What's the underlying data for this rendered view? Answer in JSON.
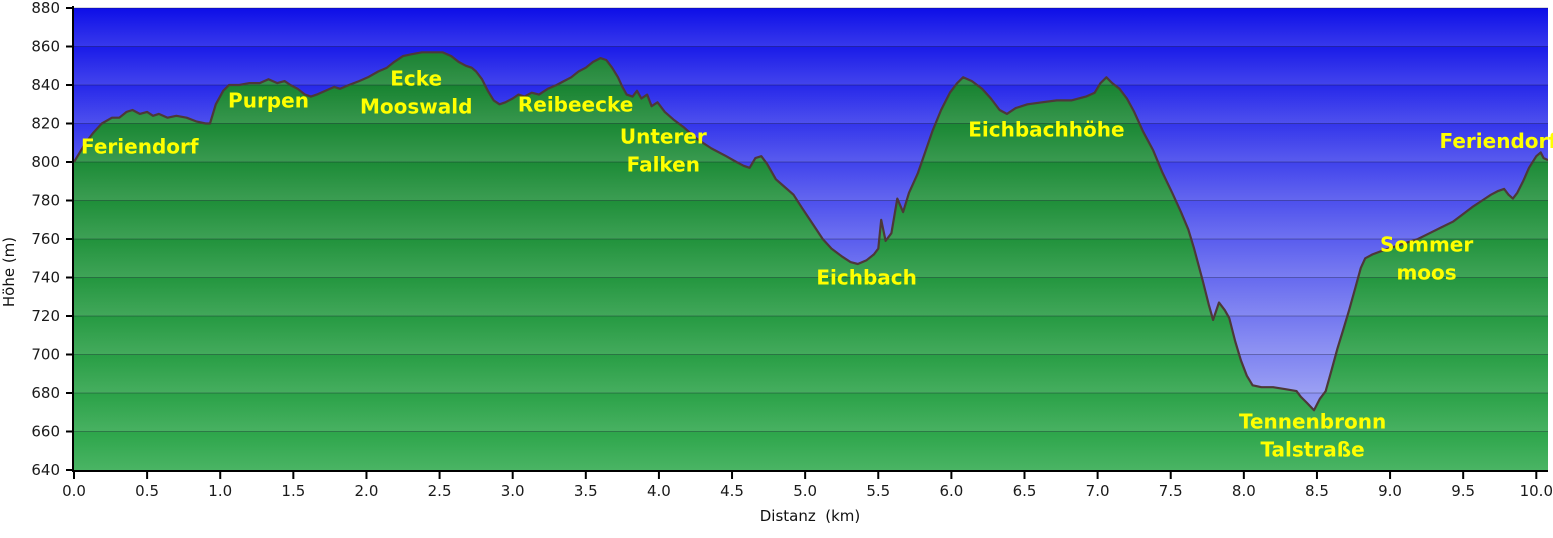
{
  "chart_data": {
    "type": "area",
    "title": "",
    "xlabel": "Distanz  (km)",
    "ylabel": "Höhe (m)",
    "x_unit": "km",
    "y_unit": "m",
    "xlim": [
      0,
      10.08
    ],
    "ylim": [
      640,
      880
    ],
    "grid": true,
    "x_ticks": [
      "0.0",
      "0.5",
      "1.0",
      "1.5",
      "2.0",
      "2.5",
      "3.0",
      "3.5",
      "4.0",
      "4.5",
      "5.0",
      "5.5",
      "6.0",
      "6.5",
      "7.0",
      "7.5",
      "8.0",
      "8.5",
      "9.0",
      "9.5",
      "10.0"
    ],
    "y_ticks": [
      640,
      660,
      680,
      700,
      720,
      740,
      760,
      780,
      800,
      820,
      840,
      860,
      880
    ],
    "colors": {
      "sky_top": "#0d0ee8",
      "sky_bottom": "#a6acf4",
      "terrain_top": "#137c2b",
      "terrain_bottom": "#2fa94d",
      "band_light": "#ffffff",
      "outline": "#4d3838",
      "gridline": "rgba(15,15,40,0.32)",
      "axis": "#000000",
      "tick_text": "#1a1a1a",
      "waypoint_label": "#ffff00"
    },
    "profile": [
      [
        0.0,
        800
      ],
      [
        0.04,
        805
      ],
      [
        0.08,
        810
      ],
      [
        0.13,
        815
      ],
      [
        0.19,
        820
      ],
      [
        0.26,
        823
      ],
      [
        0.31,
        823
      ],
      [
        0.36,
        826
      ],
      [
        0.4,
        827
      ],
      [
        0.45,
        825
      ],
      [
        0.5,
        826
      ],
      [
        0.54,
        824
      ],
      [
        0.58,
        825
      ],
      [
        0.64,
        823
      ],
      [
        0.7,
        824
      ],
      [
        0.77,
        823
      ],
      [
        0.84,
        821
      ],
      [
        0.9,
        820
      ],
      [
        0.93,
        820
      ],
      [
        0.97,
        830
      ],
      [
        1.02,
        837
      ],
      [
        1.06,
        840
      ],
      [
        1.13,
        840
      ],
      [
        1.2,
        841
      ],
      [
        1.27,
        841
      ],
      [
        1.33,
        843
      ],
      [
        1.39,
        841
      ],
      [
        1.44,
        842
      ],
      [
        1.48,
        840
      ],
      [
        1.53,
        838
      ],
      [
        1.58,
        835
      ],
      [
        1.62,
        834
      ],
      [
        1.66,
        835
      ],
      [
        1.72,
        837
      ],
      [
        1.78,
        839
      ],
      [
        1.82,
        838
      ],
      [
        1.88,
        840
      ],
      [
        1.95,
        842
      ],
      [
        2.01,
        844
      ],
      [
        2.08,
        847
      ],
      [
        2.14,
        849
      ],
      [
        2.19,
        852
      ],
      [
        2.25,
        855
      ],
      [
        2.31,
        856
      ],
      [
        2.38,
        857
      ],
      [
        2.45,
        857
      ],
      [
        2.52,
        857
      ],
      [
        2.58,
        855
      ],
      [
        2.63,
        852
      ],
      [
        2.68,
        850
      ],
      [
        2.72,
        849
      ],
      [
        2.75,
        847
      ],
      [
        2.79,
        843
      ],
      [
        2.83,
        837
      ],
      [
        2.87,
        832
      ],
      [
        2.91,
        830
      ],
      [
        2.95,
        831
      ],
      [
        3.0,
        833
      ],
      [
        3.04,
        835
      ],
      [
        3.08,
        834
      ],
      [
        3.13,
        836
      ],
      [
        3.18,
        835
      ],
      [
        3.24,
        838
      ],
      [
        3.3,
        840
      ],
      [
        3.35,
        842
      ],
      [
        3.4,
        844
      ],
      [
        3.45,
        847
      ],
      [
        3.5,
        849
      ],
      [
        3.55,
        852
      ],
      [
        3.6,
        854
      ],
      [
        3.64,
        853
      ],
      [
        3.68,
        849
      ],
      [
        3.72,
        844
      ],
      [
        3.75,
        839
      ],
      [
        3.78,
        835
      ],
      [
        3.82,
        834
      ],
      [
        3.85,
        837
      ],
      [
        3.88,
        833
      ],
      [
        3.92,
        835
      ],
      [
        3.95,
        829
      ],
      [
        3.99,
        831
      ],
      [
        4.04,
        826
      ],
      [
        4.1,
        822
      ],
      [
        4.17,
        818
      ],
      [
        4.26,
        812
      ],
      [
        4.36,
        807
      ],
      [
        4.46,
        803
      ],
      [
        4.53,
        800
      ],
      [
        4.58,
        798
      ],
      [
        4.62,
        797
      ],
      [
        4.66,
        802
      ],
      [
        4.7,
        803
      ],
      [
        4.74,
        799
      ],
      [
        4.8,
        791
      ],
      [
        4.86,
        787
      ],
      [
        4.92,
        783
      ],
      [
        4.98,
        776
      ],
      [
        5.05,
        768
      ],
      [
        5.12,
        760
      ],
      [
        5.18,
        755
      ],
      [
        5.25,
        751
      ],
      [
        5.31,
        748
      ],
      [
        5.36,
        747
      ],
      [
        5.42,
        749
      ],
      [
        5.47,
        752
      ],
      [
        5.5,
        755
      ],
      [
        5.52,
        770
      ],
      [
        5.55,
        759
      ],
      [
        5.59,
        763
      ],
      [
        5.63,
        781
      ],
      [
        5.67,
        774
      ],
      [
        5.71,
        784
      ],
      [
        5.77,
        794
      ],
      [
        5.82,
        805
      ],
      [
        5.87,
        816
      ],
      [
        5.93,
        827
      ],
      [
        5.99,
        836
      ],
      [
        6.04,
        841
      ],
      [
        6.08,
        844
      ],
      [
        6.14,
        842
      ],
      [
        6.21,
        838
      ],
      [
        6.27,
        833
      ],
      [
        6.33,
        827
      ],
      [
        6.38,
        825
      ],
      [
        6.44,
        828
      ],
      [
        6.52,
        830
      ],
      [
        6.62,
        831
      ],
      [
        6.72,
        832
      ],
      [
        6.82,
        832
      ],
      [
        6.92,
        834
      ],
      [
        6.98,
        836
      ],
      [
        7.02,
        841
      ],
      [
        7.06,
        844
      ],
      [
        7.1,
        841
      ],
      [
        7.15,
        838
      ],
      [
        7.2,
        833
      ],
      [
        7.25,
        826
      ],
      [
        7.31,
        816
      ],
      [
        7.38,
        806
      ],
      [
        7.44,
        795
      ],
      [
        7.51,
        784
      ],
      [
        7.57,
        774
      ],
      [
        7.62,
        765
      ],
      [
        7.66,
        755
      ],
      [
        7.72,
        738
      ],
      [
        7.76,
        726
      ],
      [
        7.79,
        718
      ],
      [
        7.83,
        727
      ],
      [
        7.87,
        723
      ],
      [
        7.9,
        719
      ],
      [
        7.94,
        707
      ],
      [
        7.98,
        697
      ],
      [
        8.02,
        689
      ],
      [
        8.06,
        684
      ],
      [
        8.12,
        683
      ],
      [
        8.2,
        683
      ],
      [
        8.28,
        682
      ],
      [
        8.36,
        681
      ],
      [
        8.39,
        678
      ],
      [
        8.43,
        675
      ],
      [
        8.48,
        671
      ],
      [
        8.52,
        677
      ],
      [
        8.56,
        681
      ],
      [
        8.6,
        692
      ],
      [
        8.64,
        703
      ],
      [
        8.68,
        713
      ],
      [
        8.72,
        723
      ],
      [
        8.76,
        734
      ],
      [
        8.8,
        745
      ],
      [
        8.83,
        750
      ],
      [
        8.88,
        752
      ],
      [
        8.95,
        754
      ],
      [
        9.03,
        756
      ],
      [
        9.11,
        758
      ],
      [
        9.19,
        760
      ],
      [
        9.27,
        763
      ],
      [
        9.35,
        766
      ],
      [
        9.43,
        769
      ],
      [
        9.5,
        773
      ],
      [
        9.57,
        777
      ],
      [
        9.63,
        780
      ],
      [
        9.69,
        783
      ],
      [
        9.74,
        785
      ],
      [
        9.78,
        786
      ],
      [
        9.81,
        783
      ],
      [
        9.84,
        781
      ],
      [
        9.87,
        784
      ],
      [
        9.91,
        790
      ],
      [
        9.95,
        797
      ],
      [
        10.0,
        803
      ],
      [
        10.03,
        805
      ],
      [
        10.05,
        802
      ],
      [
        10.08,
        801
      ]
    ],
    "waypoints": [
      {
        "label": "Feriendorf",
        "lines": [
          "Feriendorf"
        ],
        "x_km": 0.45,
        "y_m": 808
      },
      {
        "label": "Purpen",
        "lines": [
          "Purpen"
        ],
        "x_km": 1.33,
        "y_m": 832
      },
      {
        "label": "Ecke Mooswald",
        "lines": [
          "Ecke",
          "Mooswald"
        ],
        "x_km": 2.34,
        "y_m": 836
      },
      {
        "label": "Reibeecke",
        "lines": [
          "Reibeecke"
        ],
        "x_km": 3.43,
        "y_m": 830
      },
      {
        "label": "Unterer Falken",
        "lines": [
          "Unterer",
          "Falken"
        ],
        "x_km": 4.03,
        "y_m": 806
      },
      {
        "label": "Eichbach",
        "lines": [
          "Eichbach"
        ],
        "x_km": 5.42,
        "y_m": 740
      },
      {
        "label": "Eichbachhöhe",
        "lines": [
          "Eichbachhöhe"
        ],
        "x_km": 6.65,
        "y_m": 817
      },
      {
        "label": "Tennenbronn Talstraße",
        "lines": [
          "Tennenbronn",
          "Talstraße"
        ],
        "x_km": 8.47,
        "y_m": 658
      },
      {
        "label": "Sommer moos",
        "lines": [
          "Sommer",
          "moos"
        ],
        "x_km": 9.25,
        "y_m": 750
      },
      {
        "label": "Feriendorf",
        "lines": [
          "Feriendorf"
        ],
        "x_km": 9.74,
        "y_m": 811
      }
    ]
  }
}
